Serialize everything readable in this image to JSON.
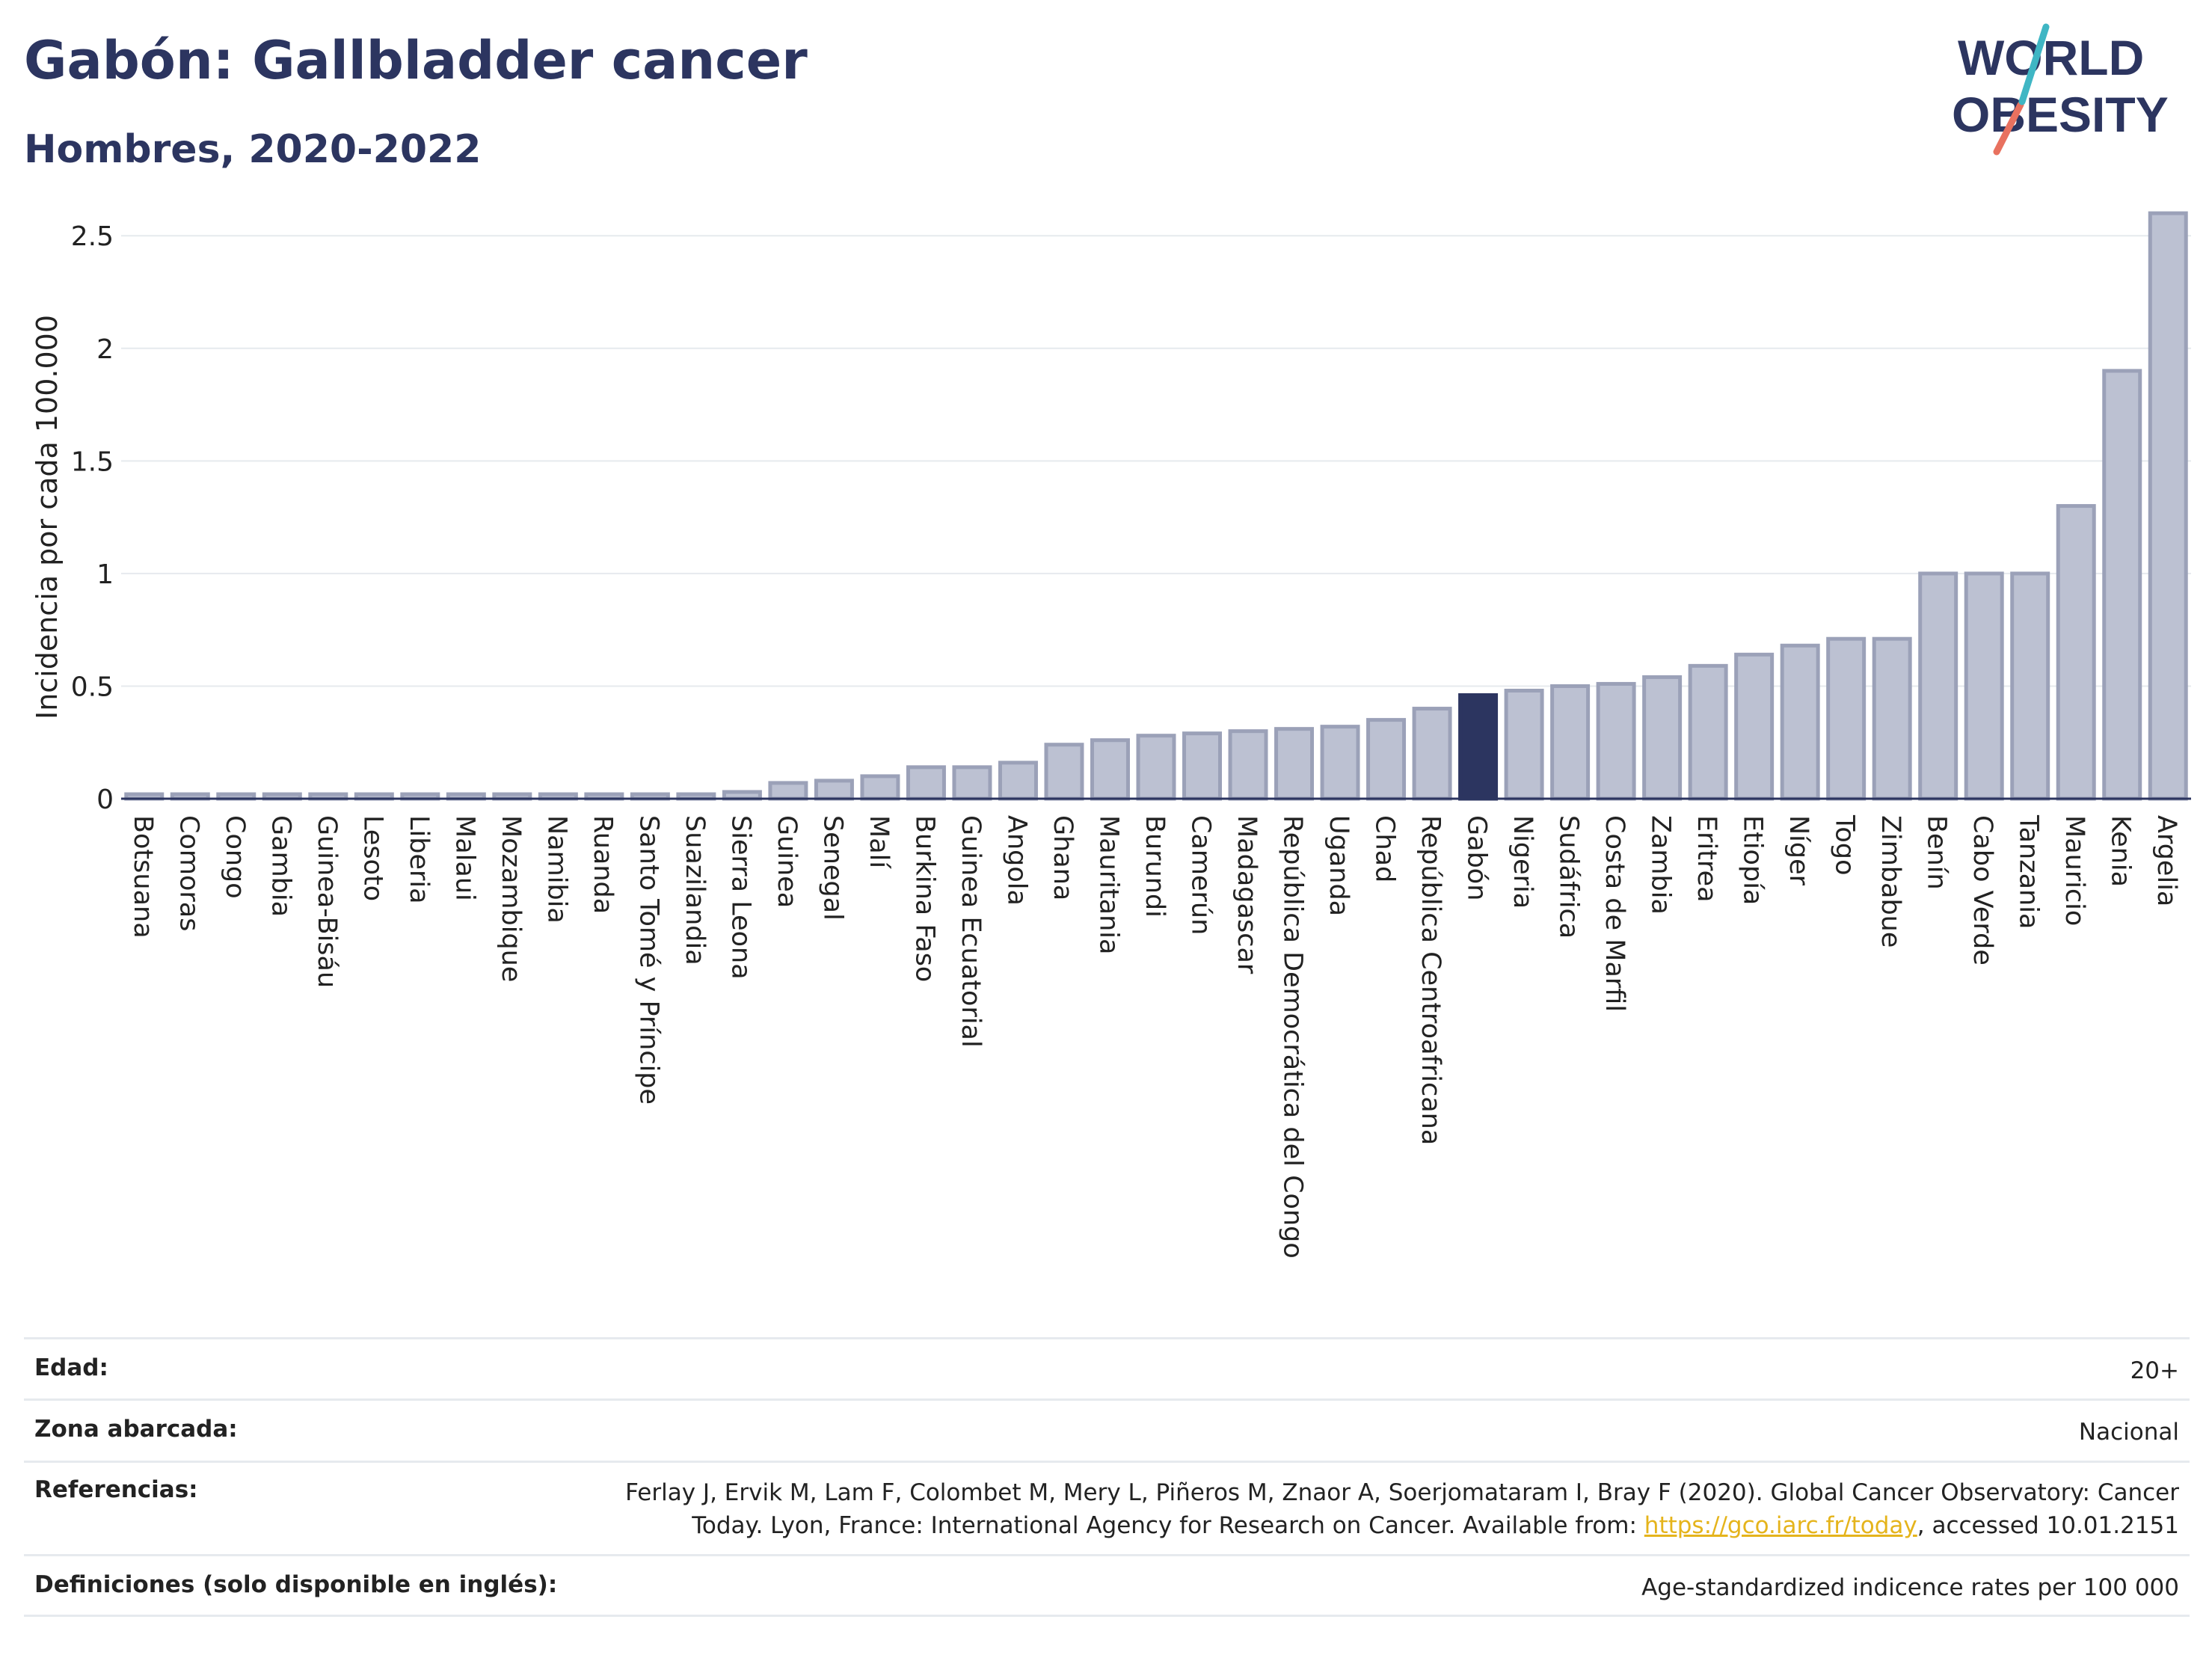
{
  "header": {
    "title": "Gabón: Gallbladder cancer",
    "subtitle": "Hombres, 2020-2022"
  },
  "logo": {
    "line1": "WORLD",
    "line2": "OBESITY"
  },
  "colors": {
    "bar": "#bcc1d2",
    "bar_edge": "#9ba1b8",
    "highlight": "#2c3560",
    "text": "#2c3560",
    "grid": "#e6eaee",
    "link": "#e5b41c"
  },
  "chart_data": {
    "type": "bar",
    "ylabel": "Incidencia por cada 100.000",
    "ylim": [
      0,
      2.7
    ],
    "yticks": [
      0,
      0.5,
      1,
      1.5,
      2,
      2.5
    ],
    "ytick_labels": [
      "0",
      "0.5",
      "1",
      "1.5",
      "2",
      "2.5"
    ],
    "grid": true,
    "highlight": "Gabón",
    "categories": [
      "Botsuana",
      "Comoras",
      "Congo",
      "Gambia",
      "Guinea-Bisáu",
      "Lesoto",
      "Liberia",
      "Malaui",
      "Mozambique",
      "Namibia",
      "Ruanda",
      "Santo Tomé y Príncipe",
      "Suazilandia",
      "Sierra Leona",
      "Guinea",
      "Senegal",
      "Malí",
      "Burkina Faso",
      "Guinea Ecuatorial",
      "Angola",
      "Ghana",
      "Mauritania",
      "Burundi",
      "Camerún",
      "Madagascar",
      "República Democrática del Congo",
      "Uganda",
      "Chad",
      "República Centroafricana",
      "Gabón",
      "Nigeria",
      "Sudáfrica",
      "Costa de Marfil",
      "Zambia",
      "Eritrea",
      "Etiopía",
      "Níger",
      "Togo",
      "Zimbabue",
      "Benín",
      "Cabo Verde",
      "Tanzania",
      "Mauricio",
      "Kenia",
      "Argelia"
    ],
    "values": [
      0,
      0,
      0,
      0,
      0,
      0,
      0,
      0,
      0,
      0,
      0,
      0,
      0,
      0.03,
      0.07,
      0.08,
      0.1,
      0.14,
      0.14,
      0.16,
      0.24,
      0.26,
      0.28,
      0.29,
      0.3,
      0.31,
      0.32,
      0.35,
      0.4,
      0.46,
      0.48,
      0.5,
      0.51,
      0.54,
      0.59,
      0.64,
      0.68,
      0.71,
      0.71,
      1.0,
      1.0,
      1.0,
      1.3,
      1.9,
      2.6
    ]
  },
  "info": [
    {
      "label": "Edad:",
      "value": "20+"
    },
    {
      "label": "Zona abarcada:",
      "value": "Nacional"
    },
    {
      "label": "Referencias:",
      "value_line1": "Ferlay J, Ervik M, Lam F, Colombet M, Mery L, Piñeros M, Znaor A, Soerjomataram I, Bray F (2020). Global Cancer Observatory: Cancer",
      "value_line2_pre": "Today. Lyon, France: International Agency for Research on Cancer. Available from: ",
      "link": "https://gco.iarc.fr/today",
      "value_line2_post": ", accessed 10.01.2151"
    },
    {
      "label": "Definiciones (solo disponible en inglés):",
      "value": "Age-standardized indicence rates per 100 000"
    }
  ]
}
